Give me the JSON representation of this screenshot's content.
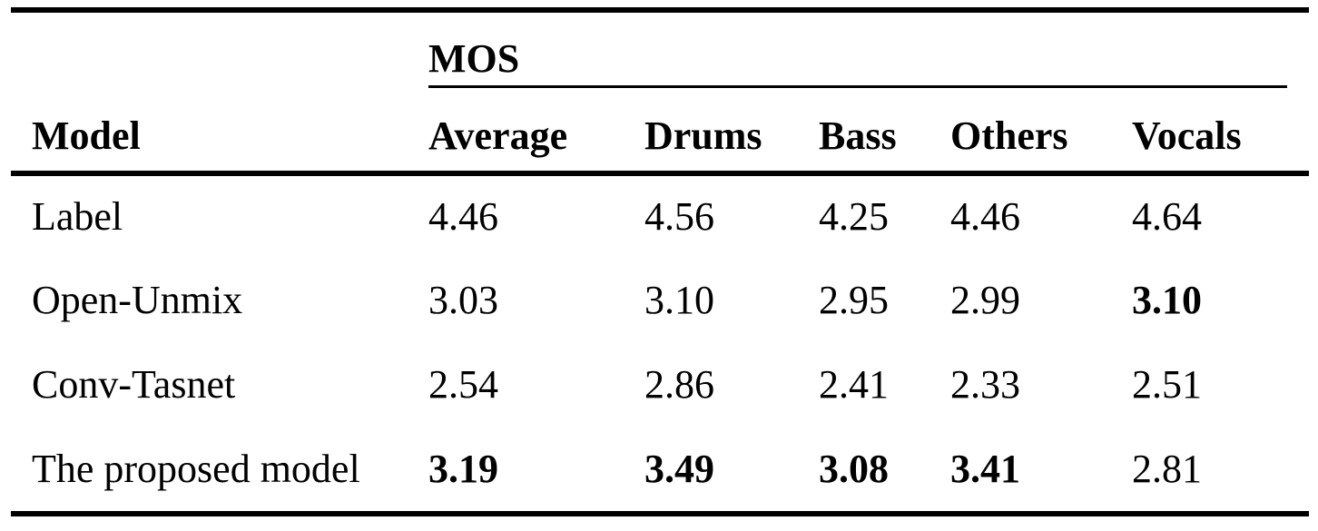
{
  "table": {
    "group_header": "MOS",
    "columns": [
      {
        "label": "Model"
      },
      {
        "label": "Average"
      },
      {
        "label": "Drums"
      },
      {
        "label": "Bass"
      },
      {
        "label": "Others"
      },
      {
        "label": "Vocals"
      }
    ],
    "rows": [
      {
        "model": "Label",
        "values": [
          {
            "text": "4.46",
            "bold": false
          },
          {
            "text": "4.56",
            "bold": false
          },
          {
            "text": "4.25",
            "bold": false
          },
          {
            "text": "4.46",
            "bold": false
          },
          {
            "text": "4.64",
            "bold": false
          }
        ]
      },
      {
        "model": "Open-Unmix",
        "values": [
          {
            "text": "3.03",
            "bold": false
          },
          {
            "text": "3.10",
            "bold": false
          },
          {
            "text": "2.95",
            "bold": false
          },
          {
            "text": "2.99",
            "bold": false
          },
          {
            "text": "3.10",
            "bold": true
          }
        ]
      },
      {
        "model": "Conv-Tasnet",
        "values": [
          {
            "text": "2.54",
            "bold": false
          },
          {
            "text": "2.86",
            "bold": false
          },
          {
            "text": "2.41",
            "bold": false
          },
          {
            "text": "2.33",
            "bold": false
          },
          {
            "text": "2.51",
            "bold": false
          }
        ]
      },
      {
        "model": "The proposed model",
        "values": [
          {
            "text": "3.19",
            "bold": true
          },
          {
            "text": "3.49",
            "bold": true
          },
          {
            "text": "3.08",
            "bold": true
          },
          {
            "text": "3.41",
            "bold": true
          },
          {
            "text": "2.81",
            "bold": false
          }
        ]
      }
    ]
  },
  "chart_data": {
    "type": "table",
    "title": "MOS",
    "columns": [
      "Model",
      "Average",
      "Drums",
      "Bass",
      "Others",
      "Vocals"
    ],
    "rows": [
      [
        "Label",
        4.46,
        4.56,
        4.25,
        4.46,
        4.64
      ],
      [
        "Open-Unmix",
        3.03,
        3.1,
        2.95,
        2.99,
        3.1
      ],
      [
        "Conv-Tasnet",
        2.54,
        2.86,
        2.41,
        2.33,
        2.51
      ],
      [
        "The proposed model",
        3.19,
        3.49,
        3.08,
        3.41,
        2.81
      ]
    ]
  },
  "colors": {
    "text": "#000000",
    "background": "#ffffff",
    "rule": "#000000"
  }
}
